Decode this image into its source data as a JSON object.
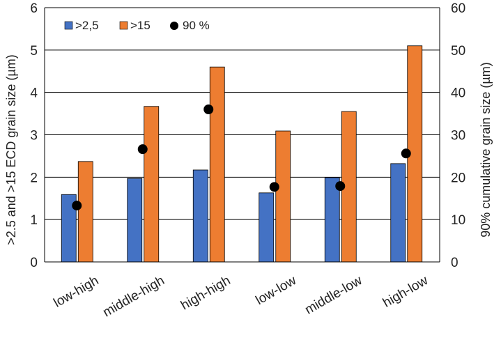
{
  "chart_data": {
    "type": "bar",
    "categories": [
      "low-high",
      "middle-high",
      "high-high",
      "low-low",
      "middle-low",
      "high-low"
    ],
    "series": [
      {
        "name": ">2,5",
        "axis": "left",
        "kind": "bar",
        "color": "#4472C4",
        "values": [
          1.59,
          1.97,
          2.17,
          1.63,
          1.99,
          2.32
        ]
      },
      {
        "name": ">15",
        "axis": "left",
        "kind": "bar",
        "color": "#ED7D31",
        "values": [
          2.37,
          3.67,
          4.6,
          3.09,
          3.55,
          5.1
        ]
      },
      {
        "name": "90 %",
        "axis": "right",
        "kind": "scatter",
        "color": "#000000",
        "values": [
          13.3,
          26.6,
          36.0,
          17.7,
          17.9,
          25.6
        ]
      }
    ],
    "ylabel": ">2.5 and >15 ECD grain size (µm)",
    "y2label": "90% cumulative grain size (µm)",
    "ylim": [
      0,
      6
    ],
    "y2lim": [
      0,
      60
    ],
    "yticks": [
      "0",
      "1",
      "2",
      "3",
      "4",
      "5",
      "6"
    ],
    "y2ticks": [
      "0",
      "10",
      "20",
      "30",
      "40",
      "50",
      "60"
    ],
    "grid": true,
    "legend_position": "top-left"
  }
}
